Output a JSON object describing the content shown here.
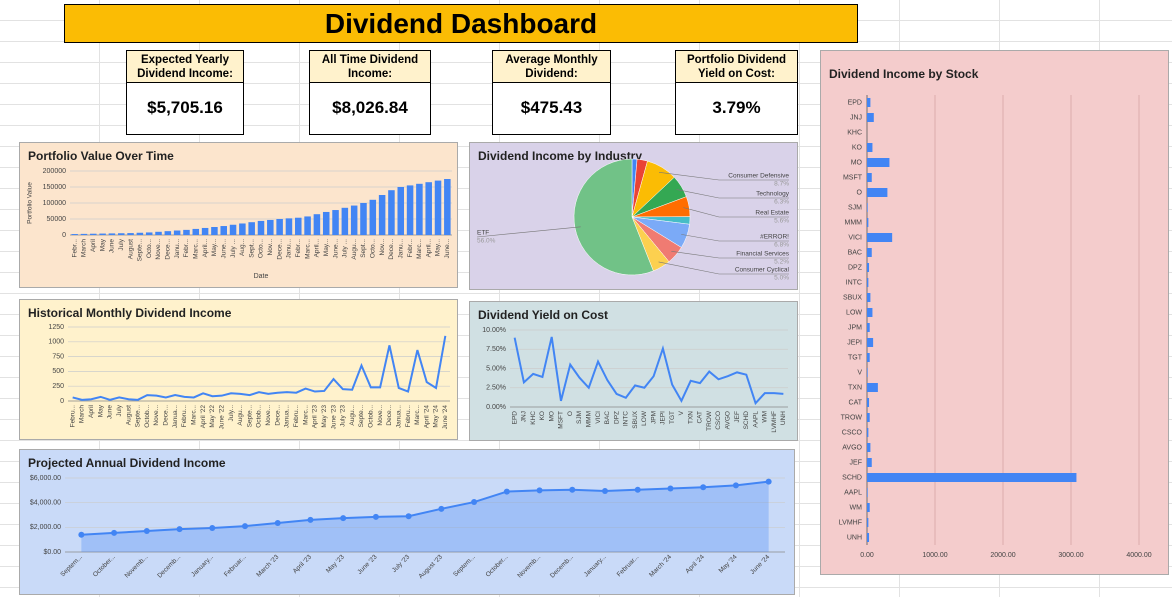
{
  "title": "Dividend Dashboard",
  "kpis": [
    {
      "label": "Expected Yearly Dividend Income:",
      "value": "$5,705.16"
    },
    {
      "label": "All Time Dividend Income:",
      "value": "$8,026.84"
    },
    {
      "label": "Average Monthly Dividend:",
      "value": "$475.43"
    },
    {
      "label": "Portfolio Dividend Yield on Cost:",
      "value": "3.79%"
    }
  ],
  "chart_data": [
    {
      "type": "bar",
      "title": "Portfolio Value Over Time",
      "xlabel": "Date",
      "ylabel": "Portfolio Value",
      "color": "#4285f4",
      "grid": true,
      "categories": [
        "Febr...",
        "March",
        "April",
        "May",
        "June",
        "July",
        "August",
        "Septe...",
        "Octo...",
        "Nove...",
        "Dece...",
        "Janu...",
        "Febr...",
        "Marc...",
        "April...",
        "May...",
        "June...",
        "July ...",
        "Aug...",
        "Sept...",
        "Octo...",
        "Nov...",
        "Dece...",
        "Janu...",
        "Febr...",
        "Marc...",
        "April...",
        "May...",
        "June...",
        "July ...",
        "Augu...",
        "Sept...",
        "Octo...",
        "Nov...",
        "Dece...",
        "Janu...",
        "Febr...",
        "Marc...",
        "April...",
        "May...",
        "June..."
      ],
      "values": [
        3000,
        3500,
        4000,
        4500,
        5000,
        5500,
        6000,
        7000,
        8000,
        10000,
        12000,
        14000,
        16000,
        19000,
        22000,
        25000,
        28000,
        32000,
        36000,
        40000,
        44000,
        47000,
        50000,
        52000,
        54000,
        58000,
        65000,
        72000,
        78000,
        85000,
        92000,
        100000,
        110000,
        125000,
        140000,
        150000,
        155000,
        160000,
        165000,
        170000,
        175000
      ],
      "ylim": [
        0,
        200000
      ],
      "yticks": [
        0,
        50000,
        100000,
        150000,
        200000
      ]
    },
    {
      "type": "pie",
      "title": "Dividend Income by Industry",
      "categories": [
        null,
        null,
        "Consumer Defensive",
        "Technology",
        "Real Estate",
        null,
        "#ERROR!",
        "Financial Services",
        "Consumer Cyclical",
        "ETF"
      ],
      "values": [
        1.4,
        2.9,
        8.7,
        6.3,
        5.6,
        2.1,
        6.8,
        5.2,
        5.0,
        56.0
      ],
      "value_labels": [
        null,
        null,
        "8.7%",
        "6.3%",
        "5.6%",
        null,
        "6.8%",
        "5.2%",
        "5.0%",
        "56.0%"
      ],
      "colors": [
        "#4285f4",
        "#ea4335",
        "#fbbc04",
        "#34a853",
        "#ff6d01",
        "#46bdc6",
        "#7baaf7",
        "#f07b72",
        "#fcd04f",
        "#71c287"
      ]
    },
    {
      "type": "line",
      "title": "Historical Monthly Dividend Income",
      "color": "#4285f4",
      "grid": true,
      "categories": [
        "Febru...",
        "March",
        "April",
        "May",
        "June",
        "July",
        "August",
        "Septe...",
        "Octob...",
        "Nove...",
        "Dece...",
        "Janua...",
        "Febru...",
        "Marc...",
        "April '22",
        "May '22",
        "June '22",
        "July...",
        "Augu...",
        "Septe...",
        "Octob...",
        "Nove...",
        "Dece...",
        "Janua...",
        "Febru...",
        "Marc...",
        "April '23",
        "May '23",
        "June '23",
        "July '23",
        "Augu...",
        "Septe...",
        "Octob...",
        "Nove...",
        "Dece...",
        "Janua...",
        "Febru...",
        "Marc...",
        "April '24",
        "May '24",
        "June '24"
      ],
      "values": [
        60,
        20,
        30,
        70,
        20,
        60,
        30,
        20,
        100,
        90,
        60,
        100,
        70,
        60,
        130,
        80,
        90,
        130,
        120,
        100,
        150,
        120,
        140,
        150,
        140,
        210,
        160,
        170,
        370,
        200,
        190,
        600,
        230,
        230,
        940,
        220,
        160,
        860,
        320,
        220,
        1100
      ],
      "ylim": [
        0,
        1250
      ],
      "yticks": [
        0,
        250,
        500,
        750,
        1000,
        1250
      ]
    },
    {
      "type": "line",
      "title": "Dividend Yield on Cost",
      "color": "#4285f4",
      "grid": true,
      "categories": [
        "EPD",
        "JNJ",
        "KHC",
        "KO",
        "MO",
        "MSFT",
        "O",
        "SJM",
        "MMM",
        "VICI",
        "BAC",
        "DPZ",
        "INTC",
        "SBUX",
        "LOW",
        "JPM",
        "JEPI",
        "TGT",
        "V",
        "TXN",
        "CAT",
        "TROW",
        "CSCO",
        "AVGO",
        "JEF",
        "SCHD",
        "AAPL",
        "WM",
        "LVMHF",
        "UNH"
      ],
      "values": [
        9.0,
        3.2,
        4.3,
        3.9,
        9.1,
        0.8,
        5.5,
        3.8,
        2.5,
        5.9,
        3.5,
        1.7,
        1.2,
        2.8,
        2.5,
        4.0,
        7.6,
        2.9,
        0.8,
        3.4,
        3.1,
        4.6,
        3.6,
        4.0,
        4.5,
        4.2,
        0.5,
        1.8,
        1.8,
        1.7
      ],
      "ylim": [
        0,
        10
      ],
      "yticks": [
        {
          "value": 0,
          "label": "0.00%"
        },
        {
          "value": 2.5,
          "label": "2.50%"
        },
        {
          "value": 5,
          "label": "5.00%"
        },
        {
          "value": 7.5,
          "label": "7.50%"
        },
        {
          "value": 10,
          "label": "10.00%"
        }
      ]
    },
    {
      "type": "area",
      "title": "Projected Annual Dividend Income",
      "color": "#4285f4",
      "grid": true,
      "markers": true,
      "categories": [
        "Septem...",
        "October...",
        "Novemb...",
        "Decemb...",
        "January...",
        "Februar...",
        "March '23",
        "April '23",
        "May '23",
        "June '23",
        "July '23",
        "August '23",
        "Septem...",
        "October...",
        "Novemb...",
        "Decemb...",
        "January...",
        "Februar...",
        "March '24",
        "April '24",
        "May '24",
        "June '24"
      ],
      "values": [
        1400,
        1550,
        1700,
        1850,
        1950,
        2100,
        2350,
        2600,
        2750,
        2850,
        2900,
        3500,
        4050,
        4900,
        5000,
        5050,
        4950,
        5050,
        5150,
        5250,
        5400,
        5705.16
      ],
      "ylim": [
        0,
        6000
      ],
      "yticks": [
        {
          "value": 0,
          "label": "$0.00"
        },
        {
          "value": 2000,
          "label": "$2,000.00"
        },
        {
          "value": 4000,
          "label": "$4,000.00"
        },
        {
          "value": 6000,
          "label": "$6,000.00"
        }
      ]
    },
    {
      "type": "bar",
      "orientation": "horizontal",
      "title": "Dividend Income by Stock",
      "color": "#4285f4",
      "grid": true,
      "categories": [
        "EPD",
        "JNJ",
        "KHC",
        "KO",
        "MO",
        "MSFT",
        "O",
        "SJM",
        "MMM",
        "VICI",
        "BAC",
        "DPZ",
        "INTC",
        "SBUX",
        "LOW",
        "JPM",
        "JEPI",
        "TGT",
        "V",
        "TXN",
        "CAT",
        "TROW",
        "CSCO",
        "AVGO",
        "JEF",
        "SCHD",
        "AAPL",
        "WM",
        "LVMHF",
        "UNH"
      ],
      "values": [
        50,
        100,
        0,
        80,
        330,
        70,
        300,
        10,
        20,
        370,
        70,
        30,
        20,
        50,
        80,
        40,
        90,
        40,
        10,
        160,
        30,
        40,
        20,
        50,
        70,
        3080,
        10,
        40,
        20,
        30
      ],
      "xlim": [
        0,
        4000
      ],
      "xticks": [
        {
          "value": 0,
          "label": "0.00"
        },
        {
          "value": 1000,
          "label": "1000.00"
        },
        {
          "value": 2000,
          "label": "2000.00"
        },
        {
          "value": 3000,
          "label": "3000.00"
        },
        {
          "value": 4000,
          "label": "4000.00"
        }
      ]
    }
  ]
}
